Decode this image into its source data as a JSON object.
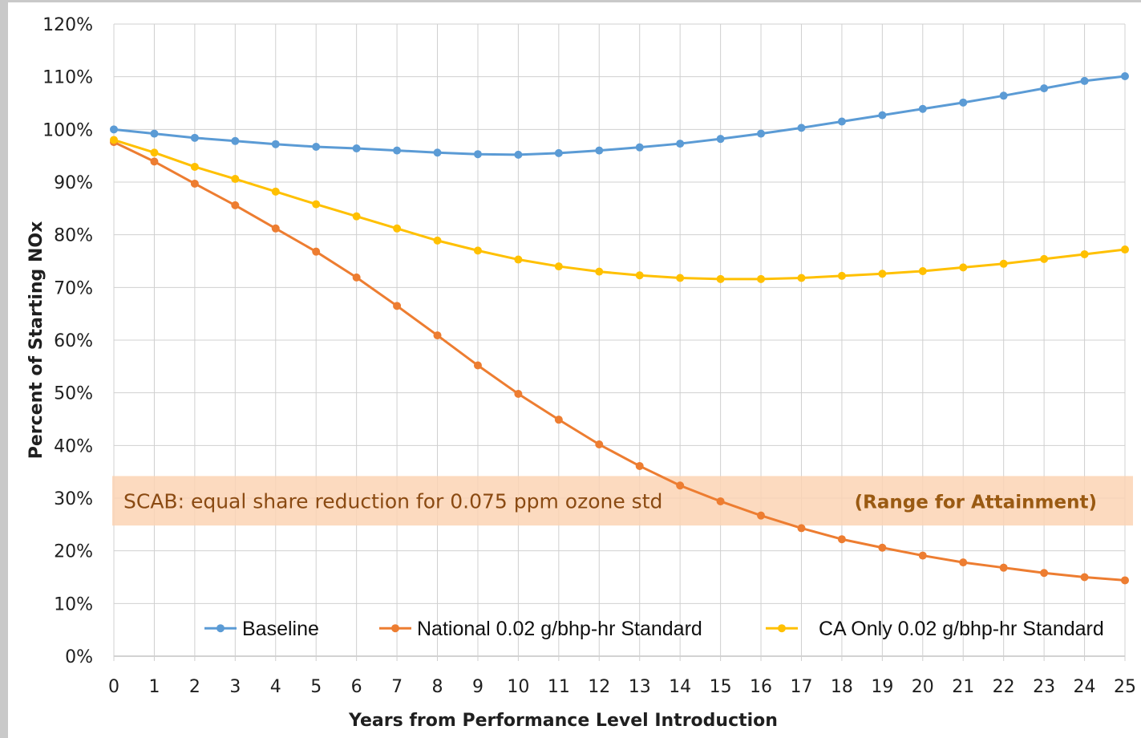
{
  "chart_data": {
    "type": "line",
    "xlabel": "Years from Performance Level Introduction",
    "ylabel": "Percent of Starting NOx",
    "x": [
      0,
      1,
      2,
      3,
      4,
      5,
      6,
      7,
      8,
      9,
      10,
      11,
      12,
      13,
      14,
      15,
      16,
      17,
      18,
      19,
      20,
      21,
      22,
      23,
      24,
      25
    ],
    "xlim": [
      0,
      25
    ],
    "ylim": [
      0,
      120
    ],
    "y_ticks": [
      "0%",
      "10%",
      "20%",
      "30%",
      "40%",
      "50%",
      "60%",
      "70%",
      "80%",
      "90%",
      "100%",
      "110%",
      "120%"
    ],
    "x_ticks": [
      "0",
      "1",
      "2",
      "3",
      "4",
      "5",
      "6",
      "7",
      "8",
      "9",
      "10",
      "11",
      "12",
      "13",
      "14",
      "15",
      "16",
      "17",
      "18",
      "19",
      "20",
      "21",
      "22",
      "23",
      "24",
      "25"
    ],
    "grid": true,
    "legend_position": "bottom",
    "series": [
      {
        "name": "Baseline",
        "color": "#5b9bd5",
        "values": [
          100,
          99.2,
          98.4,
          97.8,
          97.2,
          96.7,
          96.4,
          96.0,
          95.6,
          95.3,
          95.2,
          95.5,
          96.0,
          96.6,
          97.3,
          98.2,
          99.2,
          100.3,
          101.5,
          102.7,
          103.9,
          105.1,
          106.4,
          107.8,
          109.2,
          110.1
        ]
      },
      {
        "name": "National 0.02 g/bhp-hr Standard",
        "color": "#ed7d31",
        "values": [
          97.6,
          93.9,
          89.7,
          85.6,
          81.2,
          76.8,
          71.9,
          66.5,
          60.9,
          55.2,
          49.8,
          44.9,
          40.2,
          36.1,
          32.4,
          29.4,
          26.7,
          24.3,
          22.2,
          20.6,
          19.1,
          17.8,
          16.8,
          15.8,
          15.0,
          14.4
        ]
      },
      {
        "name": "CA Only 0.02 g/bhp-hr Standard",
        "color": "#ffc000",
        "values": [
          98.0,
          95.6,
          92.9,
          90.6,
          88.2,
          85.8,
          83.5,
          81.2,
          78.9,
          77.0,
          75.3,
          74.0,
          73.0,
          72.3,
          71.8,
          71.6,
          71.6,
          71.8,
          72.2,
          72.6,
          73.1,
          73.8,
          74.5,
          75.4,
          76.3,
          77.2
        ]
      }
    ],
    "annotation": {
      "range": [
        24.8,
        34.2
      ],
      "label": "SCAB: equal share reduction for 0.075 ppm ozone std",
      "label_right": "(Range for Attainment)",
      "fill_color": "#fbd3b4"
    }
  }
}
